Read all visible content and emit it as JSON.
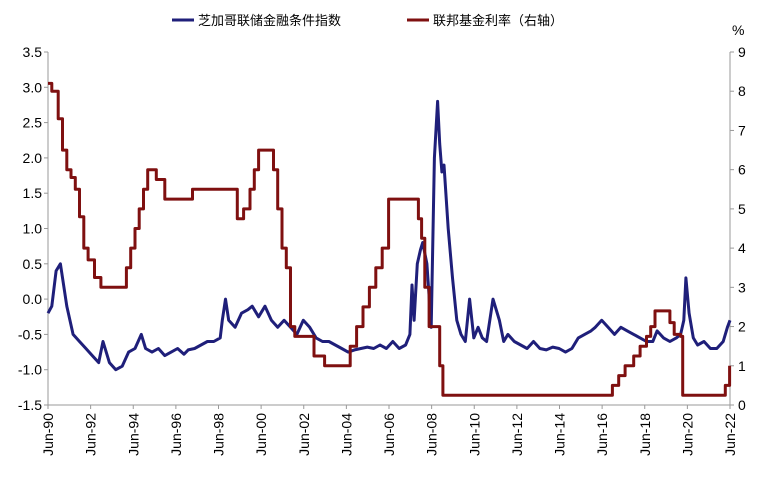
{
  "chart_data": {
    "type": "line",
    "title": "",
    "legend": {
      "placement": "top-center",
      "items": [
        {
          "label": "芝加哥联储金融条件指数",
          "color": "#1f1f7a"
        },
        {
          "label": "联邦基金利率（右轴）",
          "color": "#7f1010"
        }
      ]
    },
    "x_axis": {
      "tick_labels": [
        "Jun-90",
        "Jun-92",
        "Jun-94",
        "Jun-96",
        "Jun-98",
        "Jun-00",
        "Jun-02",
        "Jun-04",
        "Jun-06",
        "Jun-08",
        "Jun-10",
        "Jun-12",
        "Jun-14",
        "Jun-16",
        "Jun-18",
        "Jun-20",
        "Jun-22"
      ],
      "range": [
        1990.42,
        2022.42
      ]
    },
    "y_left": {
      "ylim": [
        -1.5,
        3.5
      ],
      "tick_labels": [
        "3.5",
        "3.0",
        "2.5",
        "2.0",
        "1.5",
        "1.0",
        "0.5",
        "0.0",
        "-0.5",
        "-1.0",
        "-1.5"
      ]
    },
    "y_right": {
      "unit_label": "%",
      "ylim": [
        0,
        9
      ],
      "tick_labels": [
        "9",
        "8",
        "7",
        "6",
        "5",
        "4",
        "3",
        "2",
        "1",
        "0"
      ]
    },
    "grid": false,
    "series": [
      {
        "name": "芝加哥联储金融条件指数",
        "axis": "left",
        "color": "#1f1f7a",
        "x": [
          1990.42,
          1990.6,
          1990.8,
          1991.0,
          1991.3,
          1991.6,
          1991.9,
          1992.2,
          1992.5,
          1992.8,
          1993.0,
          1993.3,
          1993.6,
          1993.9,
          1994.2,
          1994.5,
          1994.8,
          1995.0,
          1995.3,
          1995.6,
          1995.9,
          1996.2,
          1996.5,
          1996.8,
          1997.0,
          1997.3,
          1997.6,
          1997.9,
          1998.2,
          1998.5,
          1998.6,
          1998.75,
          1998.9,
          1999.2,
          1999.5,
          1999.8,
          2000.0,
          2000.3,
          2000.6,
          2000.9,
          2001.2,
          2001.5,
          2001.8,
          2002.1,
          2002.4,
          2002.7,
          2003.0,
          2003.3,
          2003.6,
          2003.9,
          2004.2,
          2004.5,
          2004.8,
          2005.1,
          2005.4,
          2005.7,
          2006.0,
          2006.3,
          2006.6,
          2006.9,
          2007.2,
          2007.4,
          2007.5,
          2007.6,
          2007.75,
          2007.9,
          2008.0,
          2008.2,
          2008.4,
          2008.55,
          2008.7,
          2008.8,
          2008.9,
          2009.0,
          2009.2,
          2009.4,
          2009.6,
          2009.8,
          2010.0,
          2010.2,
          2010.4,
          2010.6,
          2010.8,
          2011.0,
          2011.3,
          2011.6,
          2011.8,
          2012.0,
          2012.3,
          2012.6,
          2012.9,
          2013.2,
          2013.5,
          2013.8,
          2014.1,
          2014.4,
          2014.7,
          2015.0,
          2015.3,
          2015.6,
          2015.9,
          2016.1,
          2016.4,
          2016.7,
          2017.0,
          2017.3,
          2017.6,
          2017.9,
          2018.2,
          2018.5,
          2018.8,
          2019.0,
          2019.3,
          2019.6,
          2019.9,
          2020.1,
          2020.25,
          2020.35,
          2020.5,
          2020.7,
          2020.9,
          2021.2,
          2021.5,
          2021.8,
          2022.1,
          2022.3,
          2022.42
        ],
        "values": [
          -0.2,
          -0.1,
          0.4,
          0.5,
          -0.1,
          -0.5,
          -0.6,
          -0.7,
          -0.8,
          -0.9,
          -0.6,
          -0.9,
          -1.0,
          -0.95,
          -0.75,
          -0.7,
          -0.5,
          -0.7,
          -0.75,
          -0.7,
          -0.8,
          -0.75,
          -0.7,
          -0.78,
          -0.72,
          -0.7,
          -0.65,
          -0.6,
          -0.6,
          -0.55,
          -0.3,
          0.0,
          -0.3,
          -0.4,
          -0.2,
          -0.15,
          -0.1,
          -0.25,
          -0.1,
          -0.3,
          -0.4,
          -0.3,
          -0.4,
          -0.5,
          -0.3,
          -0.4,
          -0.55,
          -0.6,
          -0.6,
          -0.65,
          -0.7,
          -0.75,
          -0.72,
          -0.7,
          -0.68,
          -0.7,
          -0.65,
          -0.7,
          -0.6,
          -0.7,
          -0.65,
          -0.5,
          0.2,
          -0.3,
          0.5,
          0.7,
          0.8,
          0.5,
          -0.4,
          2.0,
          2.8,
          2.2,
          1.8,
          1.9,
          1.0,
          0.3,
          -0.3,
          -0.5,
          -0.6,
          0.0,
          -0.55,
          -0.4,
          -0.55,
          -0.6,
          0.0,
          -0.3,
          -0.6,
          -0.5,
          -0.6,
          -0.65,
          -0.7,
          -0.6,
          -0.7,
          -0.72,
          -0.68,
          -0.7,
          -0.75,
          -0.7,
          -0.55,
          -0.5,
          -0.45,
          -0.4,
          -0.3,
          -0.4,
          -0.5,
          -0.4,
          -0.45,
          -0.5,
          -0.55,
          -0.6,
          -0.6,
          -0.45,
          -0.55,
          -0.6,
          -0.55,
          -0.5,
          -0.3,
          0.3,
          -0.2,
          -0.55,
          -0.65,
          -0.6,
          -0.7,
          -0.7,
          -0.6,
          -0.4,
          -0.3
        ]
      },
      {
        "name": "联邦基金利率（右轴）",
        "axis": "right",
        "color": "#7f1010",
        "x": [
          1990.42,
          1990.6,
          1990.9,
          1991.1,
          1991.3,
          1991.5,
          1991.7,
          1991.9,
          1992.1,
          1992.3,
          1992.6,
          1992.9,
          1993.5,
          1993.9,
          1994.1,
          1994.3,
          1994.5,
          1994.7,
          1994.9,
          1995.1,
          1995.5,
          1995.9,
          1996.1,
          1997.2,
          1998.8,
          1999.3,
          1999.6,
          1999.9,
          2000.1,
          2000.3,
          2000.6,
          2001.0,
          2001.2,
          2001.4,
          2001.6,
          2001.8,
          2002.0,
          2002.9,
          2003.4,
          2004.4,
          2004.6,
          2004.9,
          2005.2,
          2005.5,
          2005.8,
          2006.1,
          2006.4,
          2007.6,
          2007.8,
          2007.95,
          2008.1,
          2008.3,
          2008.5,
          2008.8,
          2008.95,
          2015.9,
          2016.9,
          2017.2,
          2017.5,
          2017.9,
          2018.2,
          2018.5,
          2018.7,
          2018.9,
          2019.5,
          2019.6,
          2019.8,
          2020.1,
          2020.2,
          2021.9,
          2022.2,
          2022.4
        ],
        "values": [
          8.2,
          8.0,
          7.3,
          6.5,
          6.0,
          5.8,
          5.5,
          4.8,
          4.0,
          3.7,
          3.25,
          3.0,
          3.0,
          3.0,
          3.5,
          4.0,
          4.5,
          5.0,
          5.5,
          6.0,
          5.75,
          5.25,
          5.25,
          5.5,
          5.5,
          4.75,
          5.0,
          5.5,
          6.0,
          6.5,
          6.5,
          6.0,
          5.0,
          4.0,
          3.5,
          2.0,
          1.75,
          1.25,
          1.0,
          1.0,
          1.5,
          2.0,
          2.5,
          3.0,
          3.5,
          4.0,
          5.25,
          5.25,
          4.75,
          4.25,
          3.0,
          2.0,
          2.0,
          1.0,
          0.25,
          0.25,
          0.5,
          0.75,
          1.0,
          1.25,
          1.5,
          1.75,
          2.0,
          2.4,
          2.4,
          2.1,
          1.8,
          1.75,
          0.25,
          0.25,
          0.5,
          1.0
        ]
      }
    ]
  }
}
